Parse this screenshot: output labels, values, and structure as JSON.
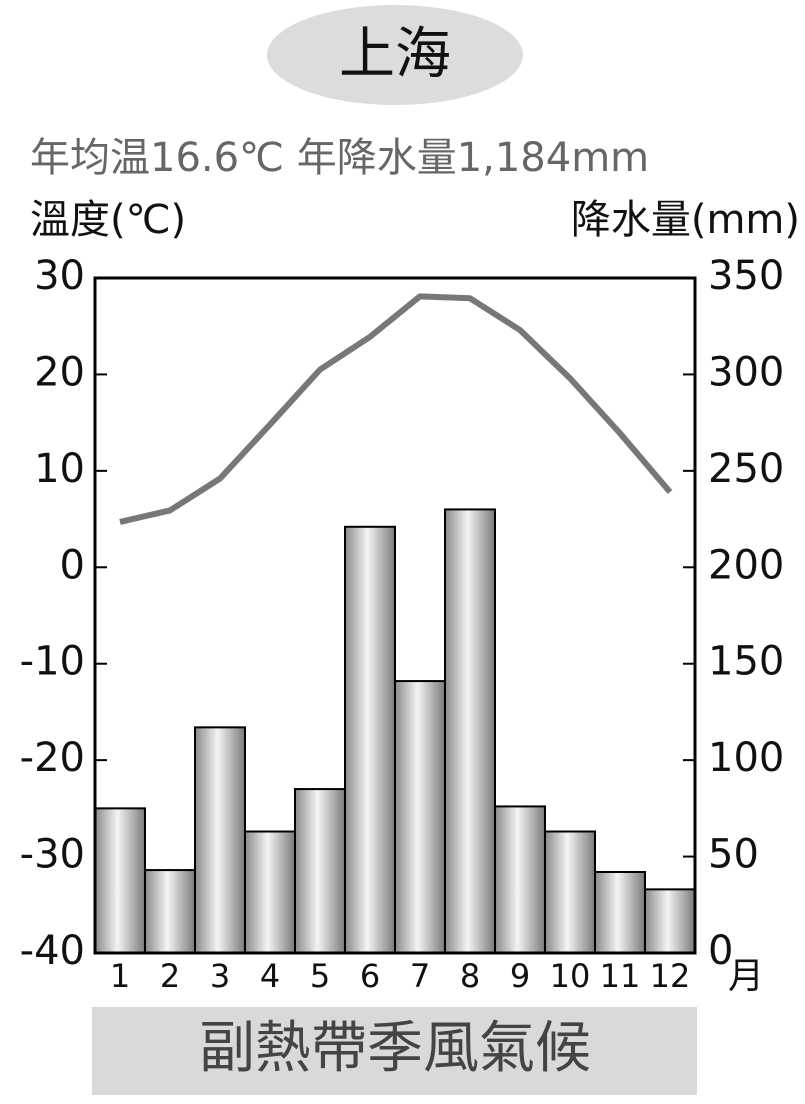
{
  "chart_data": {
    "type": "bar",
    "title": "上海",
    "subtitle": "年均温16.6℃ 年降水量1,184mm",
    "y_label": "溫度(℃)",
    "y2_label": "降水量(mm)",
    "x_unit": "月",
    "footer": "副熱帶季風氣候",
    "categories": [
      "1",
      "2",
      "3",
      "4",
      "5",
      "6",
      "7",
      "8",
      "9",
      "10",
      "11",
      "12"
    ],
    "series": [
      {
        "name": "降水量",
        "type": "bar",
        "axis": "y2",
        "color": "#888888",
        "values": [
          75,
          43,
          117,
          63,
          85,
          221,
          141,
          230,
          76,
          63,
          42,
          33
        ]
      },
      {
        "name": "溫度",
        "type": "line",
        "axis": "y",
        "color": "#777777",
        "values": [
          4.7,
          5.9,
          9.2,
          14.8,
          20.5,
          23.9,
          28.1,
          27.9,
          24.6,
          19.6,
          13.9,
          7.8
        ]
      }
    ],
    "ylim": [
      -40,
      30
    ],
    "yticks": [
      -40,
      -30,
      -20,
      -10,
      0,
      10,
      20,
      30
    ],
    "y2lim": [
      0,
      350
    ],
    "y2ticks": [
      0,
      50,
      100,
      150,
      200,
      250,
      300,
      350
    ]
  }
}
